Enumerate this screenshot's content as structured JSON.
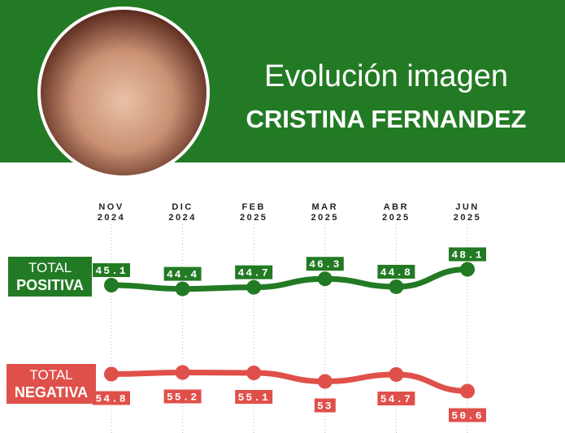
{
  "chart_data": {
    "type": "line",
    "title": "Evolución imagen",
    "subtitle": "CRISTINA FERNANDEZ",
    "categories": [
      "NOV 2024",
      "DIC 2024",
      "FEB 2025",
      "MAR 2025",
      "ABR 2025",
      "JUN 2025"
    ],
    "series": [
      {
        "name": "TOTAL POSITIVA",
        "color": "#237a24",
        "values": [
          45.1,
          44.4,
          44.7,
          46.3,
          44.8,
          48.1
        ]
      },
      {
        "name": "TOTAL NEGATIVA",
        "color": "#e0504a",
        "values": [
          54.8,
          55.2,
          55.1,
          53,
          54.7,
          50.6
        ]
      }
    ]
  }
}
